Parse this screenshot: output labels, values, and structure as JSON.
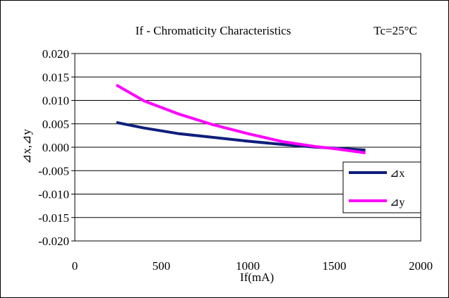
{
  "chart_data": {
    "type": "line",
    "title": "If - Chromaticity Characteristics",
    "condition": "Tc=25°C",
    "xlabel": "If(mA)",
    "ylabel": "⊿x,⊿y",
    "xlim": [
      0,
      2000
    ],
    "ylim": [
      -0.02,
      0.02
    ],
    "xticks": [
      "0",
      "500",
      "1000",
      "1500",
      "2000"
    ],
    "xtick_values": [
      0,
      500,
      1000,
      1500,
      2000
    ],
    "yticks": [
      "0.020",
      "0.015",
      "0.010",
      "0.005",
      "0.000",
      "-0.005",
      "-0.010",
      "-0.015",
      "-0.020"
    ],
    "ytick_values": [
      0.02,
      0.015,
      0.01,
      0.005,
      0.0,
      -0.005,
      -0.01,
      -0.015,
      -0.02
    ],
    "grid": "horizontal",
    "legend_position": "lower-right",
    "series": [
      {
        "name": "⊿x",
        "color": "#0f1f7a",
        "x": [
          240,
          400,
          600,
          800,
          1000,
          1200,
          1400,
          1500,
          1680
        ],
        "y": [
          0.0053,
          0.0041,
          0.0029,
          0.0021,
          0.0013,
          0.0006,
          0.0,
          -0.0002,
          -0.0006
        ]
      },
      {
        "name": "⊿y",
        "color": "#ff00ff",
        "x": [
          240,
          400,
          600,
          800,
          1000,
          1200,
          1400,
          1500,
          1680
        ],
        "y": [
          0.0133,
          0.0099,
          0.0071,
          0.0048,
          0.0029,
          0.0012,
          0.0001,
          -0.0003,
          -0.0012
        ]
      }
    ]
  }
}
